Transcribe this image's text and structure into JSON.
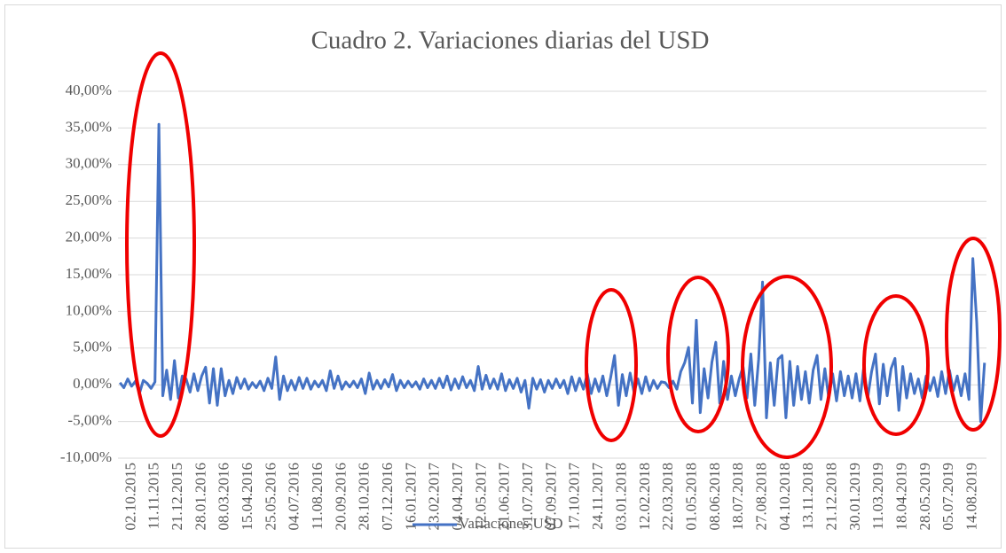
{
  "chart_data": {
    "type": "line",
    "title": "Cuadro 2. Variaciones diarias del USD",
    "categories": [
      null,
      null,
      null,
      "02.10.2015",
      null,
      null,
      null,
      null,
      null,
      "11.11.2015",
      null,
      null,
      null,
      null,
      null,
      "21.12.2015",
      null,
      null,
      null,
      null,
      null,
      "28.01.2016",
      null,
      null,
      null,
      null,
      null,
      "08.03.2016",
      null,
      null,
      null,
      null,
      null,
      "15.04.2016",
      null,
      null,
      null,
      null,
      null,
      "25.05.2016",
      null,
      null,
      null,
      null,
      null,
      "04.07.2016",
      null,
      null,
      null,
      null,
      null,
      "11.08.2016",
      null,
      null,
      null,
      null,
      null,
      "20.09.2016",
      null,
      null,
      null,
      null,
      null,
      "28.10.2016",
      null,
      null,
      null,
      null,
      null,
      "07.12.2016",
      null,
      null,
      null,
      null,
      null,
      "16.01.2017",
      null,
      null,
      null,
      null,
      null,
      "23.02.2017",
      null,
      null,
      null,
      null,
      null,
      "04.04.2017",
      null,
      null,
      null,
      null,
      null,
      "12.05.2017",
      null,
      null,
      null,
      null,
      null,
      "21.06.2017",
      null,
      null,
      null,
      null,
      null,
      "31.07.2017",
      null,
      null,
      null,
      null,
      null,
      "07.09.2017",
      null,
      null,
      null,
      null,
      null,
      "17.10.2017",
      null,
      null,
      null,
      null,
      null,
      "24.11.2017",
      null,
      null,
      null,
      null,
      null,
      "03.01.2018",
      null,
      null,
      null,
      null,
      null,
      "12.02.2018",
      null,
      null,
      null,
      null,
      null,
      "22.03.2018",
      null,
      null,
      null,
      null,
      null,
      "01.05.2018",
      null,
      null,
      null,
      null,
      null,
      "08.06.2018",
      null,
      null,
      null,
      null,
      null,
      "18.07.2018",
      null,
      null,
      null,
      null,
      null,
      "27.08.2018",
      null,
      null,
      null,
      null,
      null,
      "04.10.2018",
      null,
      null,
      null,
      null,
      null,
      "13.11.2018",
      null,
      null,
      null,
      null,
      null,
      "21.12.2018",
      null,
      null,
      null,
      null,
      null,
      "30.01.2019",
      null,
      null,
      null,
      null,
      null,
      "11.03.2019",
      null,
      null,
      null,
      null,
      null,
      "18.04.2019",
      null,
      null,
      null,
      null,
      null,
      "28.05.2019",
      null,
      null,
      null,
      null,
      null,
      "05.07.2019",
      null,
      null,
      null,
      null,
      null,
      "14.08.2019",
      null,
      null,
      null
    ],
    "series": [
      {
        "name": "Variaciones USD",
        "color": "#4472c4",
        "values": [
          0.3,
          -0.4,
          0.8,
          -0.2,
          0.5,
          -1.2,
          0.6,
          0.2,
          -0.5,
          0.4,
          35.5,
          -1.5,
          2,
          -2,
          3.3,
          -1.8,
          1.2,
          0.8,
          -1,
          1.5,
          -0.8,
          1.2,
          2.4,
          -2.5,
          2.2,
          -2.8,
          2.2,
          -1.5,
          0.6,
          -1.2,
          1,
          -0.5,
          0.8,
          -0.6,
          0.3,
          -0.4,
          0.5,
          -0.8,
          0.9,
          -0.5,
          3.8,
          -2,
          1.2,
          -0.8,
          0.6,
          -0.7,
          1,
          -0.5,
          0.9,
          -0.6,
          0.5,
          -0.3,
          0.6,
          -0.8,
          1.9,
          -0.5,
          1.2,
          -0.6,
          0.4,
          -0.3,
          0.5,
          -0.4,
          0.8,
          -1.2,
          1.6,
          -0.6,
          0.6,
          -0.5,
          0.7,
          -0.3,
          1.4,
          -0.8,
          0.6,
          -0.4,
          0.5,
          -0.3,
          0.4,
          -0.6,
          0.8,
          -0.4,
          0.6,
          -0.5,
          0.9,
          -0.4,
          1.2,
          -0.7,
          0.8,
          -0.5,
          1.1,
          -0.4,
          0.6,
          -0.8,
          2.5,
          -0.6,
          1.3,
          -0.5,
          0.8,
          -0.6,
          1.5,
          -0.8,
          0.7,
          -0.5,
          0.9,
          -1,
          0.6,
          -3.2,
          0.9,
          -0.6,
          0.7,
          -1,
          0.6,
          -0.5,
          0.8,
          -0.4,
          0.6,
          -1.2,
          1.1,
          -0.8,
          0.9,
          -0.6,
          1.5,
          -1.2,
          0.8,
          -0.9,
          1.2,
          -1.5,
          1,
          4,
          -2.8,
          1.4,
          -1.5,
          1.6,
          -1,
          0.8,
          -1.2,
          1.1,
          -0.8,
          0.6,
          -0.5,
          0.4,
          0.3,
          -0.4,
          0.5,
          -0.6,
          1.8,
          3,
          5.1,
          -2.5,
          8.8,
          -3.8,
          2.2,
          -1.8,
          3.1,
          5.8,
          -2.5,
          3.2,
          -2,
          1.2,
          -1.5,
          0.8,
          2.5,
          -1.8,
          4.2,
          -2.8,
          3.5,
          14,
          -4.5,
          3,
          -2.8,
          3.5,
          4,
          -4.5,
          3.2,
          -2.8,
          2.5,
          -2,
          1.8,
          -2.5,
          2,
          4,
          -2,
          2.2,
          -1.8,
          1.5,
          -2.2,
          1.8,
          -1.5,
          1.2,
          -1.8,
          1.5,
          -2.2,
          2.5,
          -1.8,
          1.8,
          4.2,
          -2.6,
          2.8,
          -1.5,
          2.2,
          3.6,
          -3.5,
          2.5,
          -1.8,
          1.5,
          -1.2,
          0.8,
          -1.8,
          1.2,
          -0.8,
          1,
          -1.6,
          1.8,
          -1.2,
          2,
          -0.8,
          1.2,
          -1.5,
          1.5,
          -2,
          17.2,
          8.5,
          -5,
          3
        ]
      }
    ],
    "ylim": [
      -10,
      40
    ],
    "yticks": [
      {
        "value": -10,
        "label": "-10,00%"
      },
      {
        "value": -5,
        "label": "-5,00%"
      },
      {
        "value": 0,
        "label": "0,00%"
      },
      {
        "value": 5,
        "label": "5,00%"
      },
      {
        "value": 10,
        "label": "10,00%"
      },
      {
        "value": 15,
        "label": "15,00%"
      },
      {
        "value": 20,
        "label": "20,00%"
      },
      {
        "value": 25,
        "label": "25,00%"
      },
      {
        "value": 30,
        "label": "30,00%"
      },
      {
        "value": 35,
        "label": "35,00%"
      },
      {
        "value": 40,
        "label": "40,00%"
      }
    ],
    "grid": true,
    "legend": "bottom"
  }
}
